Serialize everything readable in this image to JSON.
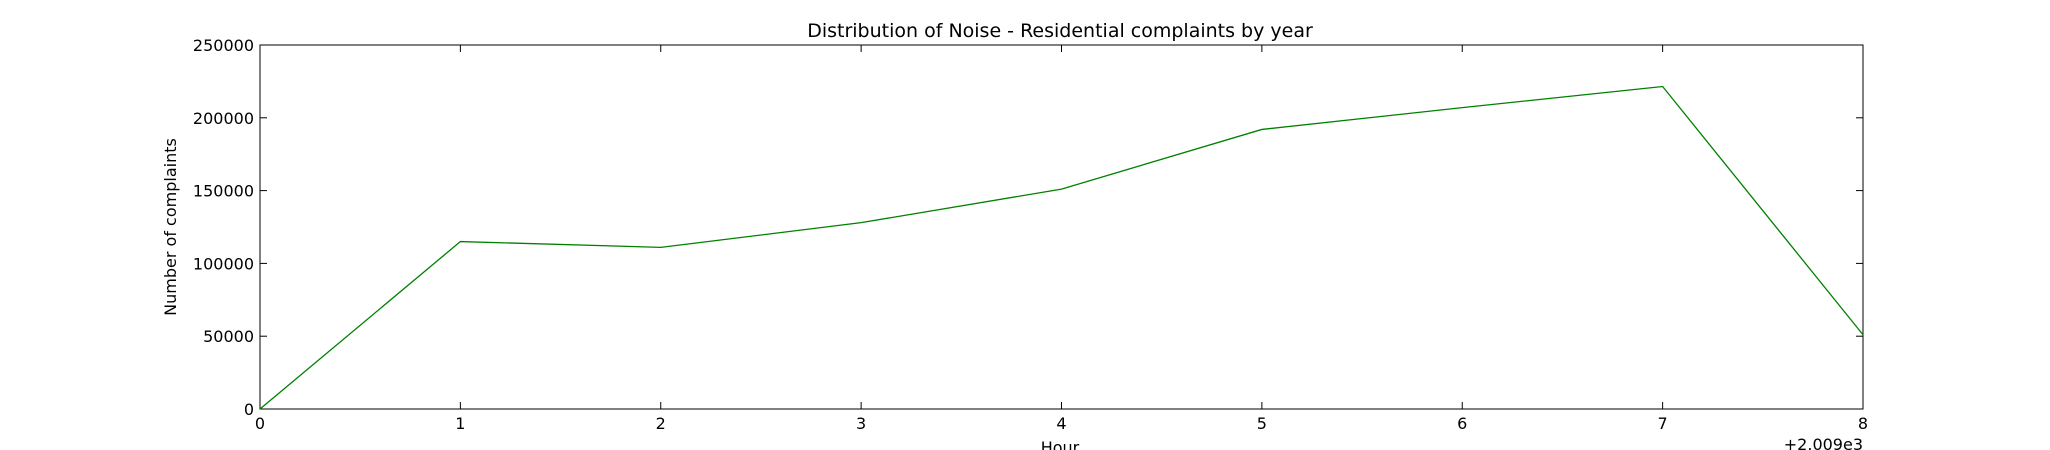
{
  "chart_data": {
    "type": "line",
    "title": "Distribution of  Noise - Residential complaints by year",
    "xlabel": "Hour",
    "ylabel": "Number of complaints",
    "x_offset_label": "+2.009e3",
    "xlim": [
      0,
      8
    ],
    "ylim": [
      0,
      250000
    ],
    "x_ticks": [
      0,
      1,
      2,
      3,
      4,
      5,
      6,
      7,
      8
    ],
    "y_ticks": [
      0,
      50000,
      100000,
      150000,
      200000,
      250000
    ],
    "grid": false,
    "legend": false,
    "series": [
      {
        "color": "#008000",
        "x": [
          0,
          1,
          2,
          3,
          4,
          5,
          6,
          7,
          8
        ],
        "y": [
          0,
          115000,
          111000,
          128000,
          151000,
          192000,
          207000,
          221500,
          51000
        ]
      }
    ]
  }
}
